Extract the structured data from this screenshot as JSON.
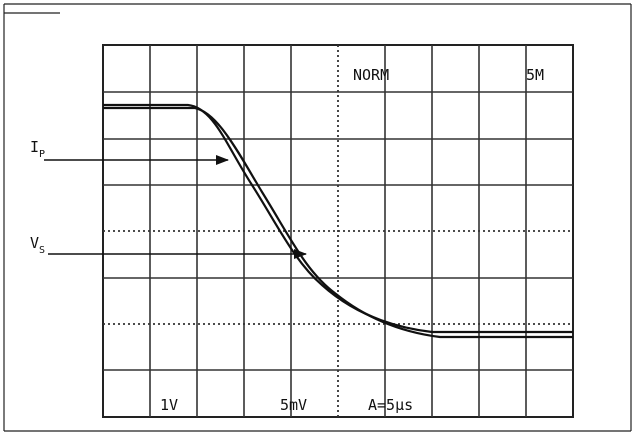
{
  "scope": {
    "mode": "NORM",
    "top_right": "5M",
    "volts_per_div_left": "1V",
    "volts_per_div_right": "5mV",
    "timebase": "A=5μs",
    "traces": [
      {
        "label": "I",
        "subscript": "P"
      },
      {
        "label": "V",
        "subscript": "S"
      }
    ]
  }
}
